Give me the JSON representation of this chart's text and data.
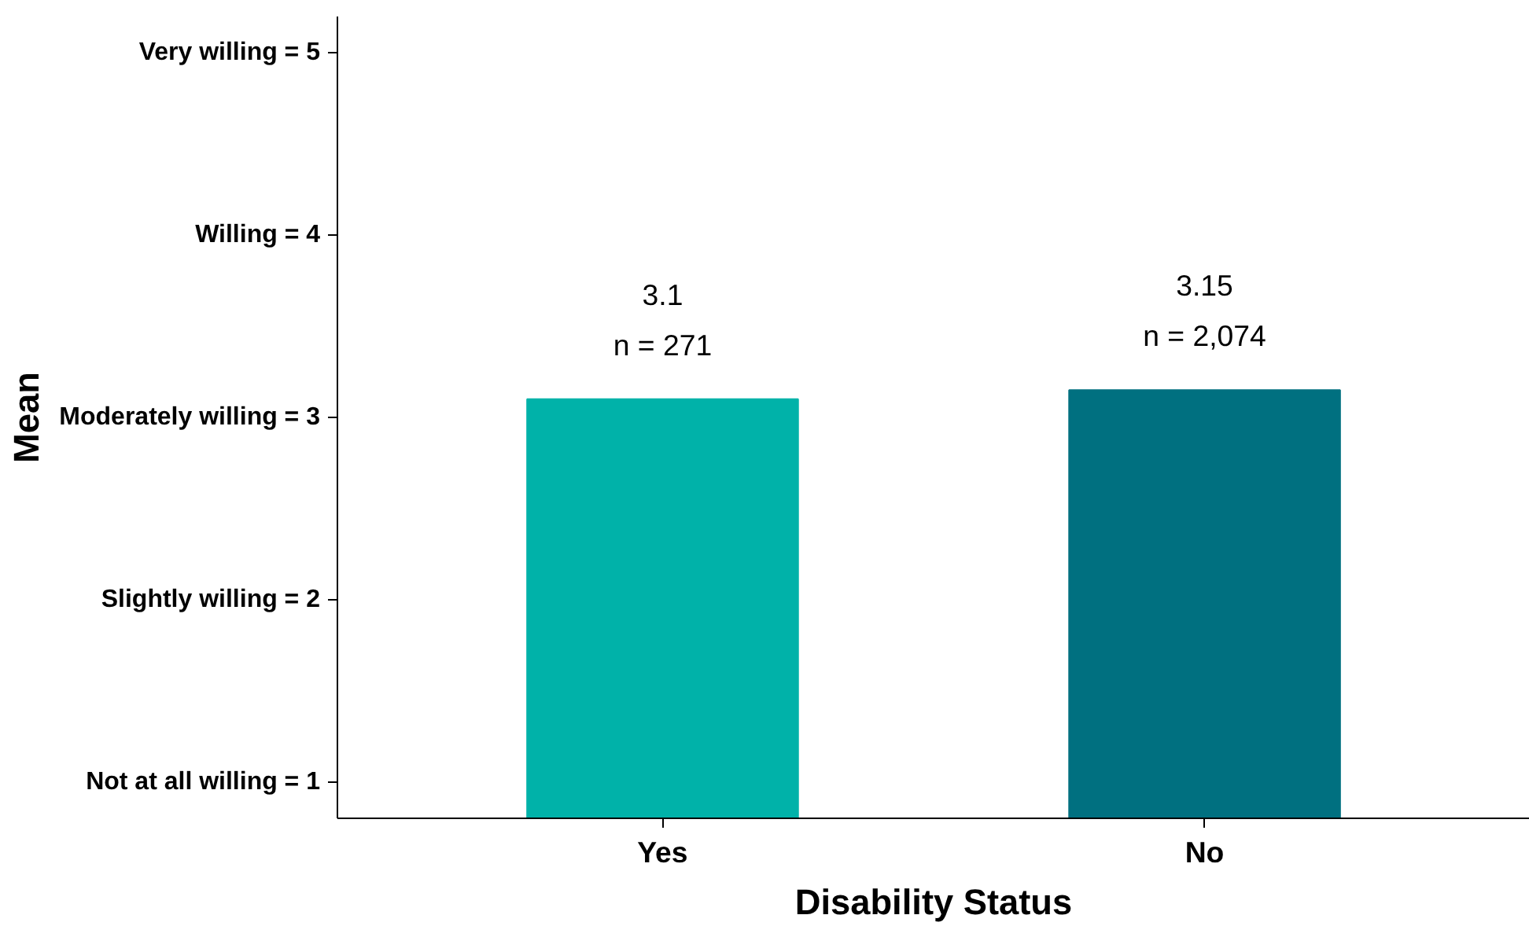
{
  "chart_data": {
    "type": "bar",
    "xlabel": "Disability Status",
    "ylabel": "Mean",
    "categories": [
      "Yes",
      "No"
    ],
    "values": [
      3.1,
      3.15
    ],
    "colors": [
      "#00b2a9",
      "#007080"
    ],
    "data_labels": true,
    "ylim": [
      0.8,
      5.2
    ],
    "yticks": [
      {
        "value": 1,
        "label": "Not at all willing = 1"
      },
      {
        "value": 2,
        "label": "Slightly willing = 2"
      },
      {
        "value": 3,
        "label": "Moderately willing = 3"
      },
      {
        "value": 4,
        "label": "Willing = 4"
      },
      {
        "value": 5,
        "label": "Very willing = 5"
      }
    ],
    "annotations": [
      "n = 271",
      "n = 2,074"
    ]
  }
}
